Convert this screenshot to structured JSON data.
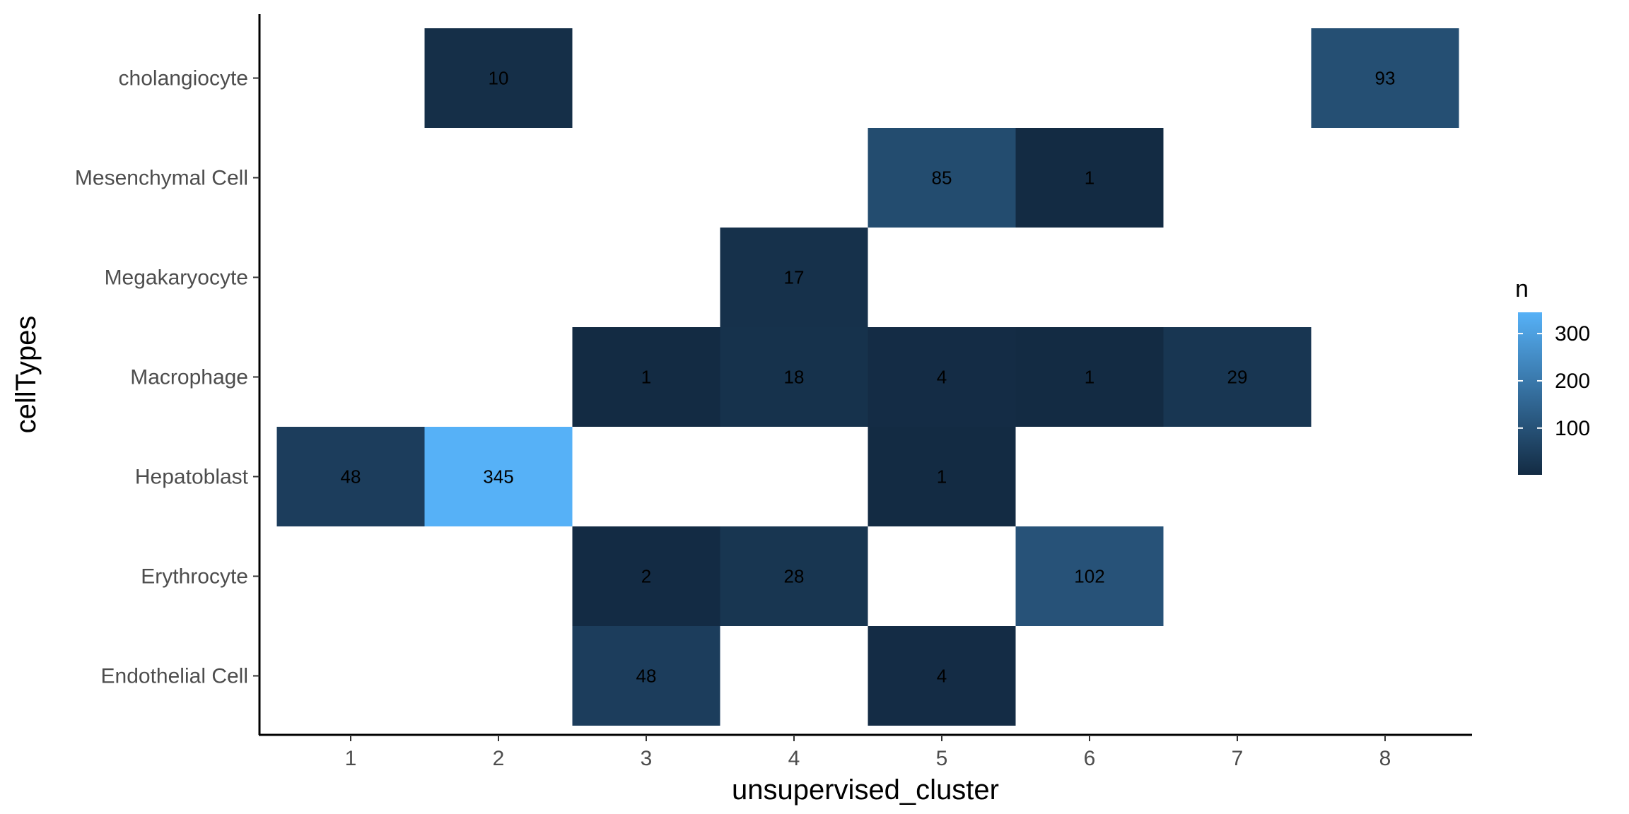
{
  "chart_data": {
    "type": "heatmap",
    "xlabel": "unsupervised_cluster",
    "ylabel": "cellTypes",
    "x_categories": [
      "1",
      "2",
      "3",
      "4",
      "5",
      "6",
      "7",
      "8"
    ],
    "y_categories": [
      "Endothelial Cell",
      "Erythrocyte",
      "Hepatoblast",
      "Macrophage",
      "Megakaryocyte",
      "Mesenchymal Cell",
      "cholangiocyte"
    ],
    "cells": [
      {
        "x": "2",
        "y": "cholangiocyte",
        "value": 10,
        "label": "10"
      },
      {
        "x": "8",
        "y": "cholangiocyte",
        "value": 93,
        "label": "93"
      },
      {
        "x": "5",
        "y": "Mesenchymal Cell",
        "value": 85,
        "label": "85"
      },
      {
        "x": "6",
        "y": "Mesenchymal Cell",
        "value": 1,
        "label": "1"
      },
      {
        "x": "4",
        "y": "Megakaryocyte",
        "value": 17,
        "label": "17"
      },
      {
        "x": "3",
        "y": "Macrophage",
        "value": 1,
        "label": "1"
      },
      {
        "x": "4",
        "y": "Macrophage",
        "value": 18,
        "label": "18"
      },
      {
        "x": "5",
        "y": "Macrophage",
        "value": 4,
        "label": "4"
      },
      {
        "x": "6",
        "y": "Macrophage",
        "value": 1,
        "label": "1"
      },
      {
        "x": "7",
        "y": "Macrophage",
        "value": 29,
        "label": "29"
      },
      {
        "x": "1",
        "y": "Hepatoblast",
        "value": 48,
        "label": "48"
      },
      {
        "x": "2",
        "y": "Hepatoblast",
        "value": 345,
        "label": "345"
      },
      {
        "x": "5",
        "y": "Hepatoblast",
        "value": 1,
        "label": "1"
      },
      {
        "x": "3",
        "y": "Erythrocyte",
        "value": 2,
        "label": "2"
      },
      {
        "x": "4",
        "y": "Erythrocyte",
        "value": 28,
        "label": "28"
      },
      {
        "x": "6",
        "y": "Erythrocyte",
        "value": 102,
        "label": "102"
      },
      {
        "x": "3",
        "y": "Endothelial Cell",
        "value": 48,
        "label": "48"
      },
      {
        "x": "5",
        "y": "Endothelial Cell",
        "value": 4,
        "label": "4"
      }
    ],
    "color_scale": {
      "low": "#132B43",
      "high": "#56B1F7",
      "min": 1,
      "max": 345
    },
    "legend": {
      "title": "n",
      "ticks": [
        "100",
        "200",
        "300"
      ],
      "tick_values": [
        100,
        200,
        300
      ],
      "placement": "right"
    },
    "grid": false
  }
}
